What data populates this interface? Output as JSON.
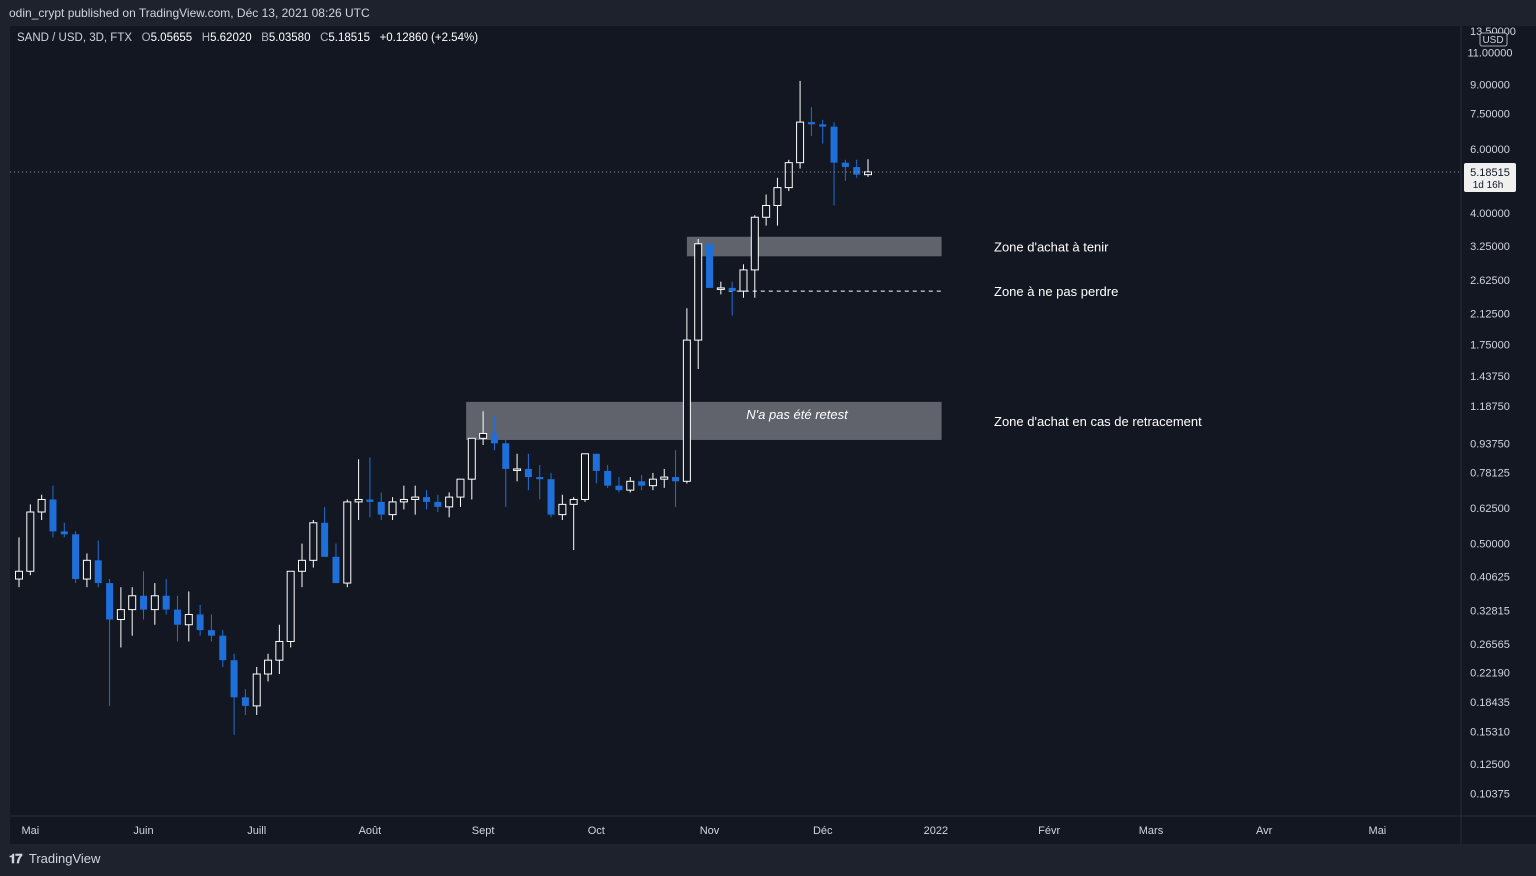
{
  "header": {
    "published": "odin_crypt published on TradingView.com, Déc 13, 2021 08:26 UTC"
  },
  "legend": {
    "symbol": "SAND / USD, 3D, FTX",
    "o_label": "O",
    "o_value": "5.05655",
    "h_label": "H",
    "h_value": "5.62020",
    "b_label": "B",
    "b_value": "5.03580",
    "c_label": "C",
    "c_value": "5.18515",
    "change": "+0.12860 (+2.54%)"
  },
  "footer": {
    "brand": "TradingView"
  },
  "colors": {
    "background": "#131722",
    "up": "#ffffff",
    "down": "#1e6fd9",
    "zone": "#6f7178"
  },
  "chart_data": {
    "type": "candlestick",
    "y_scale": "log",
    "currency_label": "USD",
    "ylim": [
      0.09,
      13.0
    ],
    "y_ticks": [
      "11.00000",
      "9.00000",
      "7.50000",
      "6.00000",
      "4.00000",
      "3.25000",
      "2.62500",
      "2.12500",
      "1.75000",
      "1.43750",
      "1.18750",
      "0.93750",
      "0.78125",
      "0.62500",
      "0.50000",
      "0.40625",
      "0.32815",
      "0.26565",
      "0.22190",
      "0.18435",
      "0.15310",
      "0.12500",
      "0.10375"
    ],
    "y_tick_values": [
      11.0,
      9.0,
      7.5,
      6.0,
      4.0,
      3.25,
      2.625,
      2.125,
      1.75,
      1.4375,
      1.1875,
      0.9375,
      0.78125,
      0.625,
      0.5,
      0.40625,
      0.32815,
      0.26565,
      0.2219,
      0.18435,
      0.1531,
      0.125,
      0.10375
    ],
    "top_tick": "13.50000",
    "x_ticks": [
      "Mai",
      "Juin",
      "Juill",
      "Août",
      "Sept",
      "Oct",
      "Nov",
      "Déc",
      "2022",
      "Févr",
      "Mars",
      "Avr",
      "Mai"
    ],
    "x_tick_index": [
      1,
      11,
      21,
      31,
      41,
      51,
      61,
      71,
      81,
      91,
      100,
      110,
      120
    ],
    "last_price": "5.18515",
    "countdown": "1d 16h",
    "candles": [
      [
        0.4,
        0.52,
        0.38,
        0.42
      ],
      [
        0.42,
        0.64,
        0.41,
        0.61
      ],
      [
        0.61,
        0.68,
        0.58,
        0.66
      ],
      [
        0.66,
        0.72,
        0.52,
        0.54
      ],
      [
        0.54,
        0.57,
        0.52,
        0.53
      ],
      [
        0.53,
        0.54,
        0.39,
        0.4
      ],
      [
        0.4,
        0.47,
        0.38,
        0.45
      ],
      [
        0.45,
        0.51,
        0.38,
        0.39
      ],
      [
        0.39,
        0.4,
        0.18,
        0.31
      ],
      [
        0.31,
        0.38,
        0.26,
        0.33
      ],
      [
        0.33,
        0.38,
        0.28,
        0.36
      ],
      [
        0.36,
        0.42,
        0.31,
        0.33
      ],
      [
        0.33,
        0.39,
        0.3,
        0.36
      ],
      [
        0.36,
        0.4,
        0.32,
        0.33
      ],
      [
        0.33,
        0.36,
        0.27,
        0.3
      ],
      [
        0.3,
        0.37,
        0.27,
        0.32
      ],
      [
        0.32,
        0.34,
        0.28,
        0.29
      ],
      [
        0.29,
        0.32,
        0.27,
        0.28
      ],
      [
        0.28,
        0.29,
        0.23,
        0.24
      ],
      [
        0.24,
        0.25,
        0.15,
        0.19
      ],
      [
        0.19,
        0.2,
        0.17,
        0.18
      ],
      [
        0.18,
        0.23,
        0.17,
        0.22
      ],
      [
        0.22,
        0.25,
        0.21,
        0.24
      ],
      [
        0.24,
        0.3,
        0.22,
        0.27
      ],
      [
        0.27,
        0.42,
        0.26,
        0.42
      ],
      [
        0.42,
        0.5,
        0.38,
        0.45
      ],
      [
        0.45,
        0.58,
        0.43,
        0.57
      ],
      [
        0.57,
        0.63,
        0.48,
        0.46
      ],
      [
        0.46,
        0.5,
        0.39,
        0.39
      ],
      [
        0.39,
        0.66,
        0.38,
        0.65
      ],
      [
        0.65,
        0.85,
        0.58,
        0.66
      ],
      [
        0.66,
        0.86,
        0.59,
        0.65
      ],
      [
        0.65,
        0.69,
        0.58,
        0.6
      ],
      [
        0.6,
        0.67,
        0.58,
        0.65
      ],
      [
        0.65,
        0.72,
        0.62,
        0.66
      ],
      [
        0.66,
        0.72,
        0.6,
        0.67
      ],
      [
        0.67,
        0.7,
        0.62,
        0.65
      ],
      [
        0.65,
        0.68,
        0.61,
        0.63
      ],
      [
        0.63,
        0.69,
        0.59,
        0.67
      ],
      [
        0.67,
        0.75,
        0.63,
        0.75
      ],
      [
        0.75,
        0.89,
        0.66,
        0.97
      ],
      [
        0.97,
        1.15,
        0.93,
        1.0
      ],
      [
        1.0,
        1.12,
        0.9,
        0.94
      ],
      [
        0.94,
        0.96,
        0.63,
        0.8
      ],
      [
        0.8,
        0.88,
        0.74,
        0.8
      ],
      [
        0.8,
        0.88,
        0.7,
        0.76
      ],
      [
        0.76,
        0.82,
        0.66,
        0.75
      ],
      [
        0.75,
        0.78,
        0.59,
        0.6
      ],
      [
        0.6,
        0.68,
        0.58,
        0.64
      ],
      [
        0.64,
        0.67,
        0.48,
        0.66
      ],
      [
        0.66,
        0.88,
        0.65,
        0.88
      ],
      [
        0.88,
        0.88,
        0.73,
        0.79
      ],
      [
        0.79,
        0.82,
        0.71,
        0.72
      ],
      [
        0.72,
        0.76,
        0.69,
        0.7
      ],
      [
        0.7,
        0.76,
        0.69,
        0.74
      ],
      [
        0.74,
        0.77,
        0.7,
        0.72
      ],
      [
        0.72,
        0.78,
        0.7,
        0.75
      ],
      [
        0.75,
        0.8,
        0.71,
        0.76
      ],
      [
        0.76,
        0.9,
        0.63,
        0.74
      ],
      [
        0.74,
        2.2,
        0.73,
        1.8
      ],
      [
        1.8,
        3.4,
        1.5,
        3.3
      ],
      [
        3.3,
        3.3,
        2.5,
        2.5
      ],
      [
        2.5,
        2.6,
        2.4,
        2.5
      ],
      [
        2.5,
        2.6,
        2.1,
        2.45
      ],
      [
        2.45,
        2.9,
        2.35,
        2.8
      ],
      [
        2.8,
        3.95,
        2.35,
        3.9
      ],
      [
        3.9,
        4.5,
        3.7,
        4.2
      ],
      [
        4.2,
        5.0,
        3.7,
        4.7
      ],
      [
        4.7,
        5.6,
        4.6,
        5.5
      ],
      [
        5.5,
        9.2,
        5.3,
        7.1
      ],
      [
        7.1,
        7.8,
        6.5,
        7.0
      ],
      [
        7.0,
        7.2,
        6.2,
        6.9
      ],
      [
        6.9,
        7.1,
        4.2,
        5.5
      ],
      [
        5.5,
        5.6,
        4.9,
        5.35
      ],
      [
        5.35,
        5.6,
        5.0,
        5.1
      ],
      [
        5.1,
        5.62,
        5.03,
        5.19
      ]
    ],
    "annotations": [
      {
        "type": "zone",
        "label": "Zone d'achat à tenir",
        "y_low": 3.05,
        "y_high": 3.45,
        "x_from": 59.0,
        "x_to": 81.5
      },
      {
        "type": "hline_dashed",
        "label": "Zone à ne pas perdre",
        "y": 2.45,
        "x_from": 62.7,
        "x_to": 81.5
      },
      {
        "type": "zone",
        "label": "Zone d'achat en cas de retracement",
        "y_low": 0.96,
        "y_high": 1.22,
        "x_from": 39.5,
        "x_to": 81.5,
        "inner_label": "N'a pas été retest"
      }
    ]
  }
}
